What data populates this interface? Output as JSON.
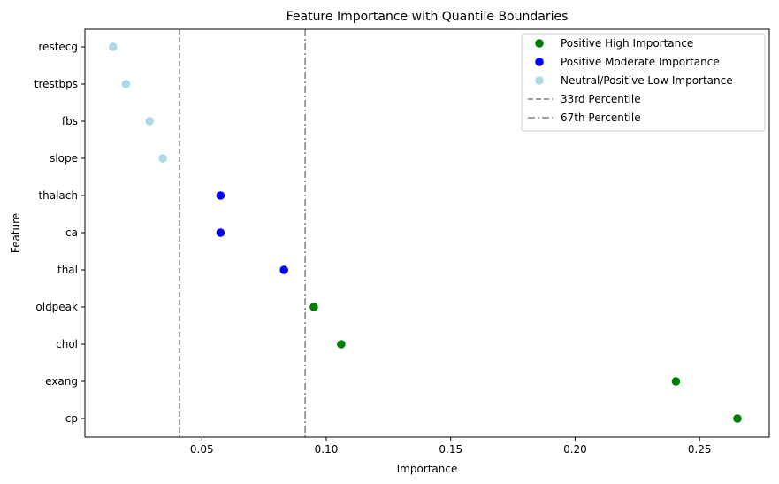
{
  "chart_data": {
    "type": "scatter",
    "title": "Feature Importance with Quantile Boundaries",
    "xlabel": "Importance",
    "ylabel": "Feature",
    "xlim": [
      0.003,
      0.278
    ],
    "xticks": [
      "0.05",
      "0.10",
      "0.15",
      "0.20",
      "0.25"
    ],
    "xtick_values": [
      0.05,
      0.1,
      0.15,
      0.2,
      0.25
    ],
    "categories": [
      "restecg",
      "trestbps",
      "fbs",
      "slope",
      "thalach",
      "ca",
      "thal",
      "oldpeak",
      "chol",
      "exang",
      "cp"
    ],
    "series": [
      {
        "name": "Positive High Importance",
        "color": "#008000",
        "points": [
          {
            "feature": "oldpeak",
            "value": 0.095
          },
          {
            "feature": "chol",
            "value": 0.106
          },
          {
            "feature": "exang",
            "value": 0.2405
          },
          {
            "feature": "cp",
            "value": 0.2652
          }
        ]
      },
      {
        "name": "Positive Moderate Importance",
        "color": "#0000ff",
        "points": [
          {
            "feature": "thalach",
            "value": 0.0575
          },
          {
            "feature": "ca",
            "value": 0.0575
          },
          {
            "feature": "thal",
            "value": 0.083
          }
        ]
      },
      {
        "name": "Neutral/Positive Low Importance",
        "color": "#add8e6",
        "points": [
          {
            "feature": "restecg",
            "value": 0.0143
          },
          {
            "feature": "trestbps",
            "value": 0.0195
          },
          {
            "feature": "fbs",
            "value": 0.029
          },
          {
            "feature": "slope",
            "value": 0.0343
          }
        ]
      }
    ],
    "reference_lines": [
      {
        "name": "33rd Percentile",
        "value": 0.041,
        "style": "dashed",
        "color": "#808080"
      },
      {
        "name": "67th Percentile",
        "value": 0.0915,
        "style": "dashdot",
        "color": "#808080"
      }
    ],
    "legend_position": "top-right",
    "grid": false
  }
}
